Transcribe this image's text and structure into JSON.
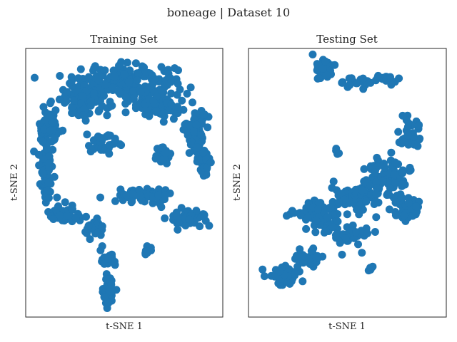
{
  "figure": {
    "title": "boneage | Dataset 10"
  },
  "colors": {
    "marker": "#1f77b4",
    "axes_edge": "#262626",
    "text": "#262626",
    "background": "#ffffff"
  },
  "chart_data": [
    {
      "type": "scatter",
      "title": "Training Set",
      "xlabel": "t-SNE 1",
      "ylabel": "t-SNE 2",
      "grid": false,
      "ticks": false,
      "xlim": [
        0,
        100
      ],
      "ylim": [
        0,
        100
      ],
      "marker_color": "#1f77b4",
      "clusters": [
        {
          "center": [
            50,
            88
          ],
          "spread": [
            26,
            6
          ],
          "count": 200
        },
        {
          "center": [
            30,
            80
          ],
          "spread": [
            12,
            6
          ],
          "count": 90
        },
        {
          "center": [
            68,
            80
          ],
          "spread": [
            12,
            6
          ],
          "count": 90
        },
        {
          "center": [
            12,
            70
          ],
          "spread": [
            5,
            8
          ],
          "count": 70
        },
        {
          "center": [
            86,
            70
          ],
          "spread": [
            5,
            8
          ],
          "count": 70
        },
        {
          "center": [
            10,
            55
          ],
          "spread": [
            4,
            10
          ],
          "count": 60
        },
        {
          "center": [
            90,
            58
          ],
          "spread": [
            3,
            7
          ],
          "count": 40
        },
        {
          "center": [
            40,
            65
          ],
          "spread": [
            10,
            4
          ],
          "count": 40
        },
        {
          "center": [
            70,
            60
          ],
          "spread": [
            6,
            4
          ],
          "count": 30
        },
        {
          "center": [
            20,
            38
          ],
          "spread": [
            8,
            3
          ],
          "count": 40
        },
        {
          "center": [
            35,
            33
          ],
          "spread": [
            5,
            4
          ],
          "count": 30
        },
        {
          "center": [
            60,
            45
          ],
          "spread": [
            14,
            3
          ],
          "count": 60
        },
        {
          "center": [
            83,
            37
          ],
          "spread": [
            9,
            3
          ],
          "count": 60
        },
        {
          "center": [
            42,
            22
          ],
          "spread": [
            4,
            3
          ],
          "count": 20
        },
        {
          "center": [
            42,
            10
          ],
          "spread": [
            3,
            6
          ],
          "count": 50
        },
        {
          "center": [
            62,
            24
          ],
          "spread": [
            2,
            2
          ],
          "count": 8
        }
      ]
    },
    {
      "type": "scatter",
      "title": "Testing Set",
      "xlabel": "t-SNE 1",
      "ylabel": "t-SNE 2",
      "grid": false,
      "ticks": false,
      "xlim": [
        0,
        100
      ],
      "ylim": [
        0,
        100
      ],
      "marker_color": "#1f77b4",
      "clusters": [
        {
          "center": [
            38,
            92
          ],
          "spread": [
            5,
            4
          ],
          "count": 35
        },
        {
          "center": [
            55,
            87
          ],
          "spread": [
            8,
            2
          ],
          "count": 18
        },
        {
          "center": [
            70,
            88
          ],
          "spread": [
            6,
            2
          ],
          "count": 15
        },
        {
          "center": [
            45,
            62
          ],
          "spread": [
            2,
            2
          ],
          "count": 4
        },
        {
          "center": [
            82,
            68
          ],
          "spread": [
            6,
            6
          ],
          "count": 35
        },
        {
          "center": [
            70,
            52
          ],
          "spread": [
            10,
            8
          ],
          "count": 80
        },
        {
          "center": [
            55,
            45
          ],
          "spread": [
            12,
            6
          ],
          "count": 80
        },
        {
          "center": [
            35,
            38
          ],
          "spread": [
            12,
            5
          ],
          "count": 70
        },
        {
          "center": [
            52,
            30
          ],
          "spread": [
            10,
            5
          ],
          "count": 40
        },
        {
          "center": [
            80,
            40
          ],
          "spread": [
            6,
            5
          ],
          "count": 40
        },
        {
          "center": [
            18,
            15
          ],
          "spread": [
            8,
            4
          ],
          "count": 50
        },
        {
          "center": [
            30,
            22
          ],
          "spread": [
            6,
            3
          ],
          "count": 30
        },
        {
          "center": [
            62,
            18
          ],
          "spread": [
            2,
            2
          ],
          "count": 5
        }
      ]
    }
  ]
}
